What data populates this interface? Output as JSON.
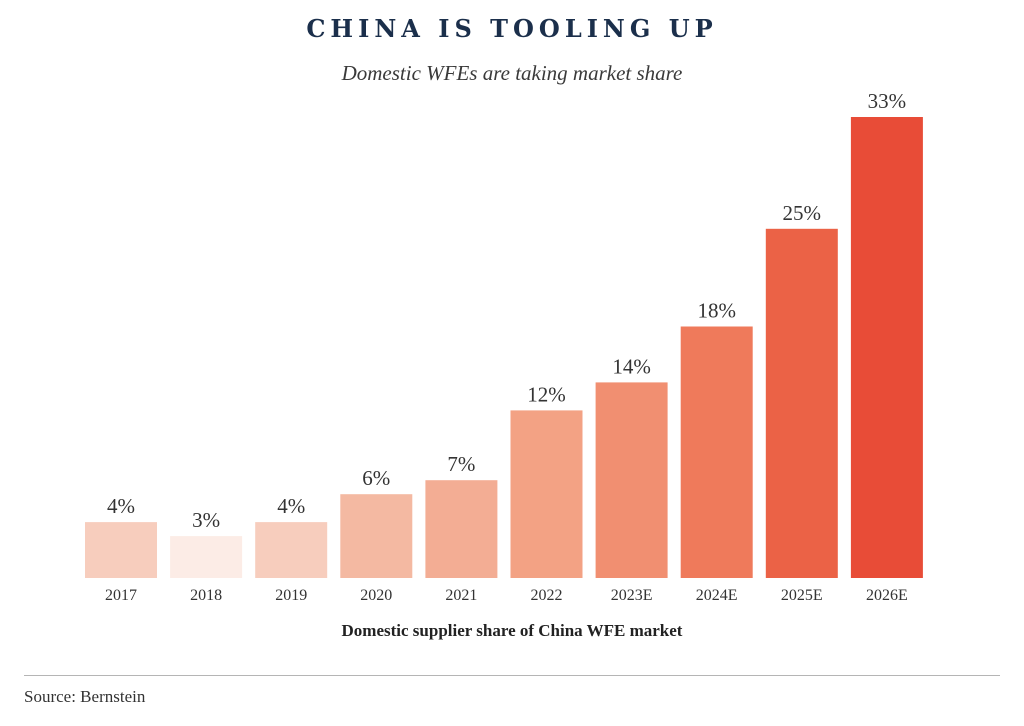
{
  "chart_data": {
    "type": "bar",
    "title": "CHINA IS TOOLING UP",
    "subtitle": "Domestic WFEs are taking market share",
    "xlabel": "Domestic supplier share of China WFE market",
    "ylabel": "",
    "categories": [
      "2017",
      "2018",
      "2019",
      "2020",
      "2021",
      "2022",
      "2023E",
      "2024E",
      "2025E",
      "2026E"
    ],
    "values": [
      4,
      3,
      4,
      6,
      7,
      12,
      14,
      18,
      25,
      33
    ],
    "data_labels": [
      "4%",
      "3%",
      "4%",
      "6%",
      "7%",
      "12%",
      "14%",
      "18%",
      "25%",
      "33%"
    ],
    "colors": [
      "#f7cdbd",
      "#fcece6",
      "#f7cdbd",
      "#f4b9a2",
      "#f3ad94",
      "#f3a284",
      "#f18f71",
      "#ef7a5b",
      "#eb6246",
      "#e84c37"
    ],
    "ylim": [
      0,
      33
    ],
    "grid": false,
    "legend": "none"
  },
  "source": "Source: Bernstein"
}
